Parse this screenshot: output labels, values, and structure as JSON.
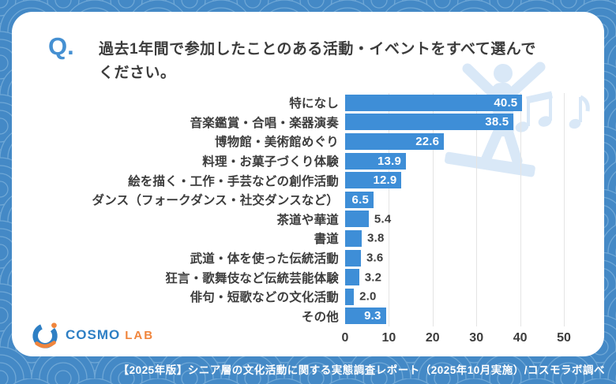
{
  "question": {
    "marker": "Q.",
    "text": "過去1年間で参加したことのある活動・イベントをすべて選んでください。"
  },
  "chart_data": {
    "type": "bar",
    "orientation": "horizontal",
    "title": "過去1年間で参加したことのある活動・イベントをすべて選んでください。",
    "unit": "%",
    "categories": [
      "特になし",
      "音楽鑑賞・合唱・楽器演奏",
      "博物館・美術館めぐり",
      "料理・お菓子づくり体験",
      "絵を描く・工作・手芸などの創作活動",
      "ダンス（フォークダンス・社交ダンスなど）",
      "茶道や華道",
      "書道",
      "武道・体を使った伝統活動",
      "狂言・歌舞伎など伝統芸能体験",
      "俳句・短歌などの文化活動",
      "その他"
    ],
    "values": [
      40.5,
      38.5,
      22.6,
      13.9,
      12.9,
      6.5,
      5.4,
      3.8,
      3.6,
      3.2,
      2.0,
      9.3
    ],
    "xlim": [
      0,
      50
    ],
    "xticks": [
      0,
      10,
      20,
      30,
      40,
      50
    ],
    "grid": true,
    "legend": "none",
    "bar_color": "#3e8ed7",
    "value_label_inside_color": "#ffffff",
    "value_label_outside_color": "#3c3c3c",
    "value_inside_min": 6
  },
  "logo": {
    "brand": "COSMO",
    "suffix": "LAB"
  },
  "footer": {
    "text": "【2025年版】シニア層の文化活動に関する実態調査レポート（2025年10月実施）/コスモラボ調べ"
  },
  "colors": {
    "background_pattern": "#4489c6",
    "pattern_arc": "#6ea7d6",
    "bar": "#3e8ed7",
    "accent_q": "#4590d2",
    "watermark": "#d9e8f7",
    "logo_blue": "#2e7fc4",
    "logo_orange": "#f0853c",
    "footer_text": "#ffffff"
  }
}
